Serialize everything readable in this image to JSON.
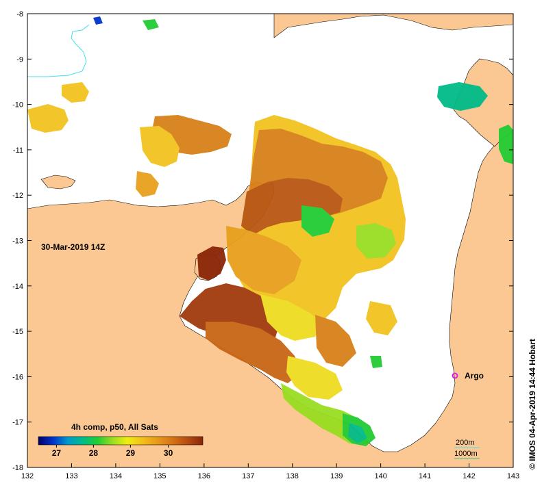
{
  "map": {
    "lon_range": [
      132,
      143
    ],
    "lat_range": [
      -18,
      -8
    ],
    "lon_ticks": [
      "132",
      "133",
      "134",
      "135",
      "136",
      "137",
      "138",
      "139",
      "140",
      "141",
      "142",
      "143"
    ],
    "lat_ticks": [
      "-8",
      "-9",
      "-10",
      "-11",
      "-12",
      "-13",
      "-14",
      "-15",
      "-16",
      "-17",
      "-18"
    ],
    "date_label": "30-Mar-2019 14Z",
    "credit": "© IMOS 04-Apr-2019 14:44 Hobart",
    "argo_label": "Argo",
    "argo_position": {
      "lon": 141.7,
      "lat": -16.0
    },
    "contour_labels": [
      "200m",
      "1000m"
    ],
    "colors": {
      "land": "#fbc894",
      "water": "#ffffff",
      "argo": "#e020e0",
      "contour_200": "#40e0f0",
      "contour_1000": "#30c090"
    }
  },
  "legend": {
    "title": "4h comp, p50, All Sats",
    "ticks": [
      "27",
      "28",
      "29",
      "30"
    ],
    "colors": [
      "#000066",
      "#0033cc",
      "#0099cc",
      "#00bb88",
      "#22cc33",
      "#99dd22",
      "#eeee11",
      "#f4c01c",
      "#e89a1a",
      "#d87516",
      "#b84f10",
      "#8a2608"
    ]
  }
}
